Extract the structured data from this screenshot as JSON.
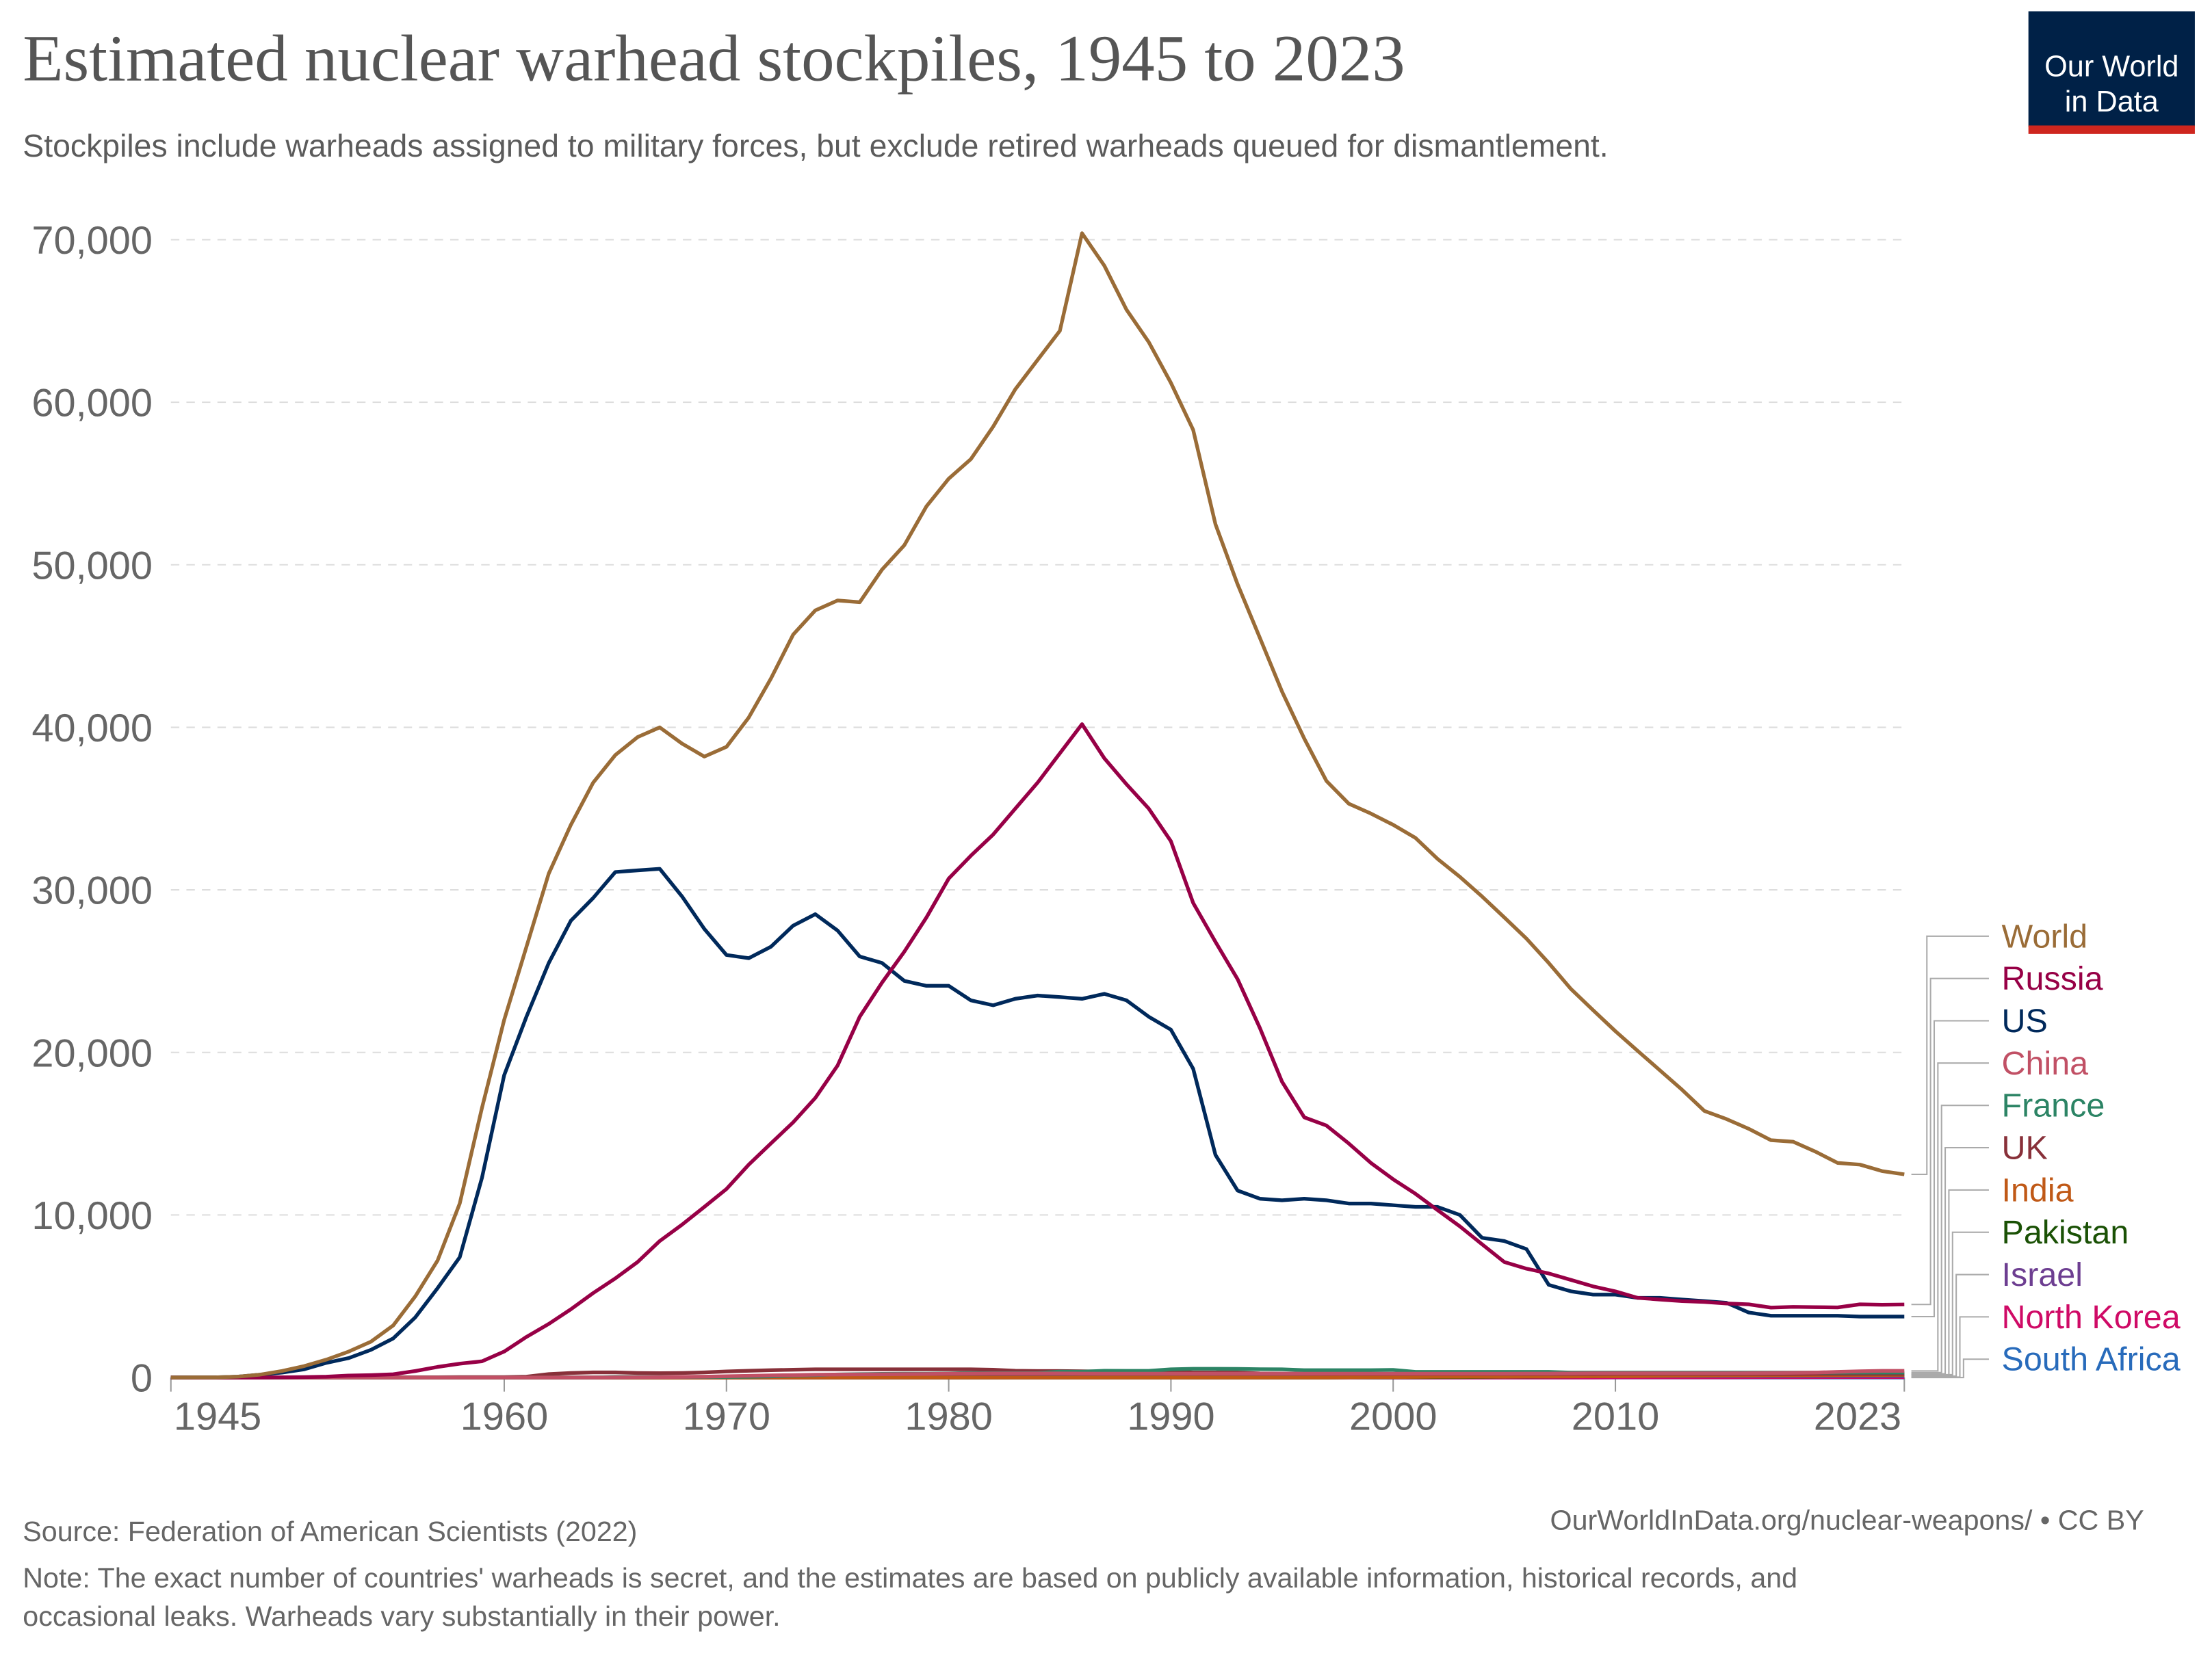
{
  "header": {
    "title": "Estimated nuclear warhead stockpiles, 1945 to 2023",
    "subtitle": "Stockpiles include warheads assigned to military forces, but exclude retired warheads queued for dismantlement.",
    "logo_line1": "Our World",
    "logo_line2": "in Data",
    "logo_bg": "#002147",
    "logo_accent": "#ce261e"
  },
  "footer": {
    "source": "Source: Federation of American Scientists (2022)",
    "url": "OurWorldInData.org/nuclear-weapons/ • CC BY",
    "note_line1": "Note: The exact number of countries' warheads is secret, and the estimates are based on publicly available information, historical records, and",
    "note_line2": "occasional leaks. Warheads vary substantially in their power."
  },
  "chart_data": {
    "type": "line",
    "title": "Estimated nuclear warhead stockpiles, 1945 to 2023",
    "xlim": [
      1945,
      2023
    ],
    "ylim": [
      0,
      70000
    ],
    "grid": true,
    "legend": "right",
    "x_ticks": [
      "1945",
      "1960",
      "1970",
      "1980",
      "1990",
      "2000",
      "2010",
      "2023"
    ],
    "y_ticks": [
      "0",
      "10,000",
      "20,000",
      "30,000",
      "40,000",
      "50,000",
      "60,000",
      "70,000"
    ],
    "series": [
      {
        "name": "World",
        "color": "#9a6c37",
        "start_year": 1945,
        "values": [
          2,
          9,
          13,
          50,
          170,
          400,
          700,
          1100,
          1600,
          2200,
          3200,
          5000,
          7200,
          10700,
          16600,
          22000,
          26500,
          31000,
          34000,
          36600,
          38300,
          39400,
          40000,
          39000,
          38200,
          38800,
          40600,
          43000,
          45700,
          47200,
          47800,
          47700,
          49700,
          51200,
          53600,
          55300,
          56500,
          58500,
          60800,
          62600,
          64400,
          70400,
          68400,
          65700,
          63700,
          61200,
          58300,
          52500,
          48800,
          45500,
          42200,
          39300,
          36700,
          35300,
          34700,
          34000,
          33200,
          31900,
          30800,
          29600,
          28300,
          27000,
          25500,
          23900,
          22600,
          21300,
          20100,
          18900,
          17700,
          16400,
          15900,
          15300,
          14600,
          14500,
          13900,
          13200,
          13100,
          12700,
          12500
        ]
      },
      {
        "name": "Russia",
        "color": "#970046",
        "start_year": 1945,
        "values": [
          0,
          0,
          0,
          0,
          1,
          5,
          25,
          50,
          120,
          150,
          200,
          400,
          650,
          850,
          1000,
          1600,
          2500,
          3300,
          4200,
          5200,
          6100,
          7100,
          8400,
          9400,
          10500,
          11600,
          13100,
          14400,
          15700,
          17200,
          19200,
          22200,
          24300,
          26200,
          28300,
          30700,
          32100,
          33400,
          35000,
          36600,
          38400,
          40200,
          38100,
          36500,
          35000,
          33000,
          29200,
          26800,
          24500,
          21500,
          18200,
          16000,
          15500,
          14400,
          13200,
          12200,
          11300,
          10300,
          9300,
          8200,
          7100,
          6700,
          6400,
          6000,
          5600,
          5300,
          4900,
          4800,
          4700,
          4650,
          4550,
          4500,
          4300,
          4350,
          4330,
          4310,
          4500,
          4480,
          4490
        ]
      },
      {
        "name": "US",
        "color": "#00295b",
        "start_year": 1945,
        "values": [
          2,
          9,
          13,
          50,
          170,
          300,
          500,
          900,
          1200,
          1700,
          2400,
          3700,
          5500,
          7400,
          12300,
          18600,
          22200,
          25500,
          28100,
          29500,
          31100,
          31200,
          31300,
          29600,
          27600,
          26000,
          25800,
          26500,
          27800,
          28500,
          27500,
          25900,
          25500,
          24400,
          24100,
          24100,
          23200,
          22900,
          23300,
          23500,
          23400,
          23300,
          23600,
          23200,
          22200,
          21400,
          19000,
          13700,
          11500,
          11000,
          10900,
          11000,
          10900,
          10700,
          10700,
          10600,
          10500,
          10500,
          10000,
          8600,
          8400,
          7900,
          5700,
          5300,
          5100,
          5100,
          4900,
          4900,
          4800,
          4700,
          4600,
          4000,
          3800,
          3800,
          3800,
          3800,
          3750,
          3750,
          3750
        ]
      },
      {
        "name": "China",
        "color": "#c15065",
        "start_year": 1964,
        "values": [
          1,
          5,
          20,
          25,
          35,
          50,
          75,
          100,
          130,
          150,
          170,
          185,
          190,
          200,
          210,
          220,
          230,
          240,
          250,
          250,
          250,
          250,
          240,
          235,
          235,
          235,
          232,
          232,
          232,
          232,
          232,
          232,
          232,
          232,
          232,
          232,
          232,
          235,
          235,
          235,
          235,
          235,
          240,
          240,
          250,
          260,
          260,
          260,
          260,
          260,
          260,
          260,
          270,
          280,
          290,
          300,
          350,
          380,
          410,
          410
        ]
      },
      {
        "name": "France",
        "color": "#2c8465",
        "start_year": 1964,
        "values": [
          4,
          32,
          36,
          36,
          36,
          36,
          36,
          45,
          70,
          116,
          145,
          188,
          212,
          228,
          235,
          235,
          250,
          274,
          274,
          279,
          280,
          360,
          355,
          420,
          411,
          412,
          504,
          538,
          540,
          525,
          510,
          500,
          450,
          450,
          450,
          450,
          470,
          350,
          348,
          350,
          350,
          350,
          350,
          350,
          300,
          300,
          300,
          300,
          300,
          300,
          300,
          300,
          300,
          300,
          300,
          300,
          300,
          300,
          300,
          300
        ]
      },
      {
        "name": "UK",
        "color": "#883039",
        "start_year": 1953,
        "values": [
          1,
          5,
          10,
          15,
          20,
          22,
          25,
          30,
          50,
          205,
          280,
          310,
          310,
          280,
          270,
          280,
          308,
          375,
          420,
          450,
          475,
          500,
          500,
          500,
          500,
          500,
          500,
          500,
          500,
          480,
          420,
          400,
          400,
          380,
          370,
          350,
          350,
          350,
          300,
          300,
          300,
          250,
          240,
          230,
          225,
          225,
          215,
          215,
          215,
          215,
          215,
          215,
          215,
          215,
          215,
          215,
          215,
          225,
          225,
          225,
          225,
          215,
          215,
          215,
          215,
          215,
          225,
          225,
          225,
          225,
          225
        ]
      },
      {
        "name": "India",
        "color": "#c05917",
        "start_year": 1998,
        "values": [
          12,
          20,
          30,
          35,
          40,
          45,
          50,
          55,
          60,
          65,
          70,
          75,
          80,
          90,
          100,
          110,
          120,
          130,
          130,
          140,
          140,
          150,
          150,
          160,
          160,
          164
        ]
      },
      {
        "name": "Pakistan",
        "color": "#1a5105",
        "start_year": 1998,
        "values": [
          5,
          10,
          15,
          20,
          25,
          30,
          35,
          40,
          50,
          60,
          70,
          80,
          90,
          100,
          110,
          120,
          130,
          140,
          150,
          150,
          160,
          160,
          165,
          165,
          165,
          170
        ]
      },
      {
        "name": "Israel",
        "color": "#6d3e91",
        "start_year": 1967,
        "values": [
          2,
          5,
          8,
          11,
          14,
          17,
          20,
          24,
          28,
          31,
          35,
          38,
          42,
          45,
          48,
          51,
          54,
          57,
          60,
          63,
          66,
          69,
          72,
          75,
          78,
          80,
          82,
          84,
          86,
          88,
          90,
          90,
          90,
          90,
          90,
          90,
          90,
          90,
          90,
          90,
          90,
          90,
          90,
          90,
          90,
          90,
          90,
          90,
          90,
          90,
          90,
          90,
          90,
          90,
          90,
          90,
          90
        ]
      },
      {
        "name": "North Korea",
        "color": "#cf0a66",
        "start_year": 2006,
        "values": [
          1,
          2,
          3,
          4,
          5,
          6,
          7,
          8,
          10,
          12,
          15,
          18,
          20,
          25,
          30,
          30,
          30,
          30
        ]
      },
      {
        "name": "South Africa",
        "color": "#286bbb",
        "start_year": 1979,
        "values": [
          1,
          2,
          3,
          4,
          5,
          6,
          6,
          6,
          6,
          6,
          6,
          6,
          3,
          0
        ]
      }
    ]
  }
}
